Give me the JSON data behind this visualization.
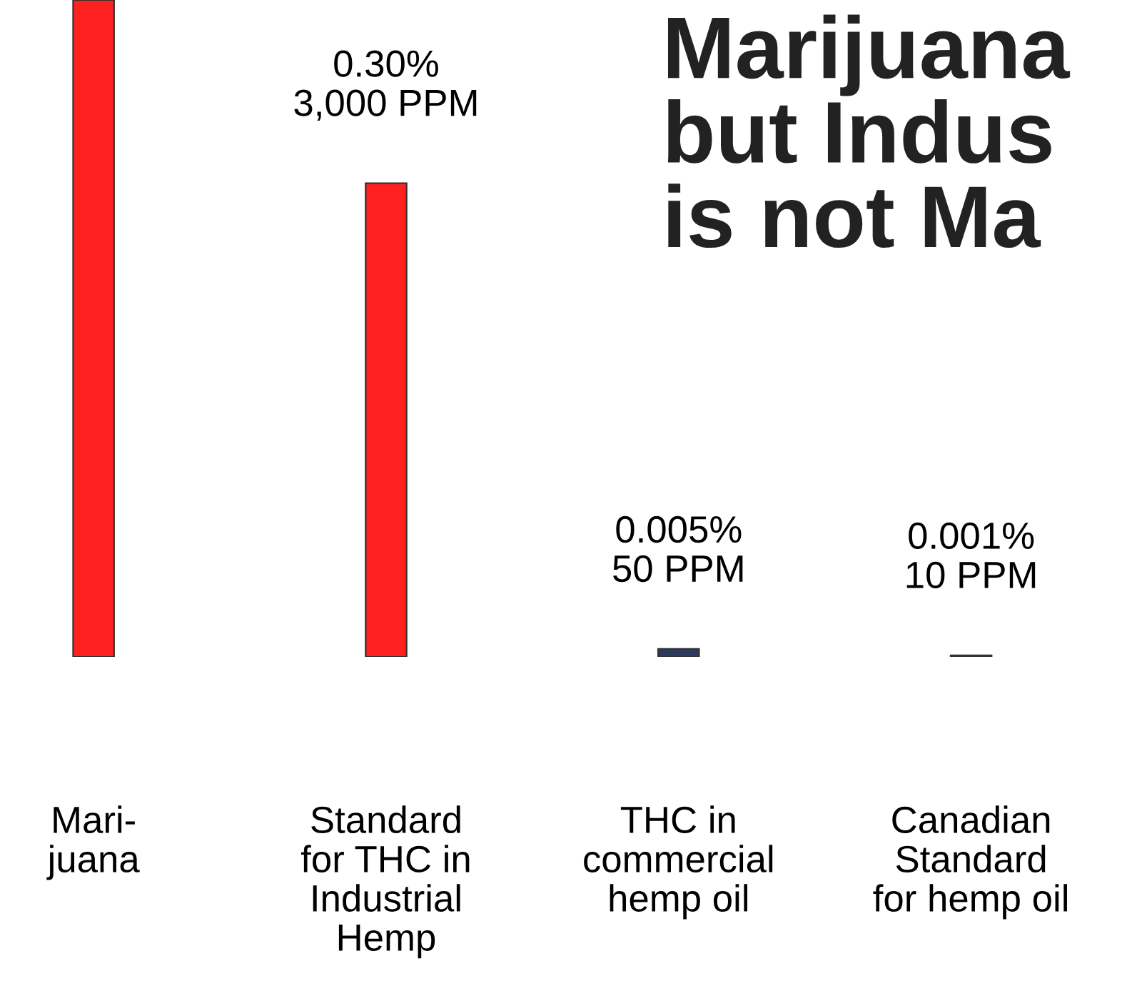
{
  "chart_data": {
    "type": "bar",
    "title": "Marijuana\nbut Indus\nis not Ma",
    "tick_labels": "x",
    "categories": [
      "Mari-\njuana",
      "Standard\nfor THC in\nIndustrial\nHemp",
      "THC in\ncommercial\nhemp oil",
      "Canadian\nStandard\nfor hemp oil"
    ],
    "values": [
      4160,
      3000,
      50,
      10
    ],
    "colors": [
      "#ff2020",
      "#ff2020",
      "#2e3a5e",
      "#505050"
    ],
    "value_labels": [
      null,
      "0.30%\n3,000 PPM",
      "0.005%\n50 PPM",
      "0.001%\n10 PPM"
    ]
  }
}
